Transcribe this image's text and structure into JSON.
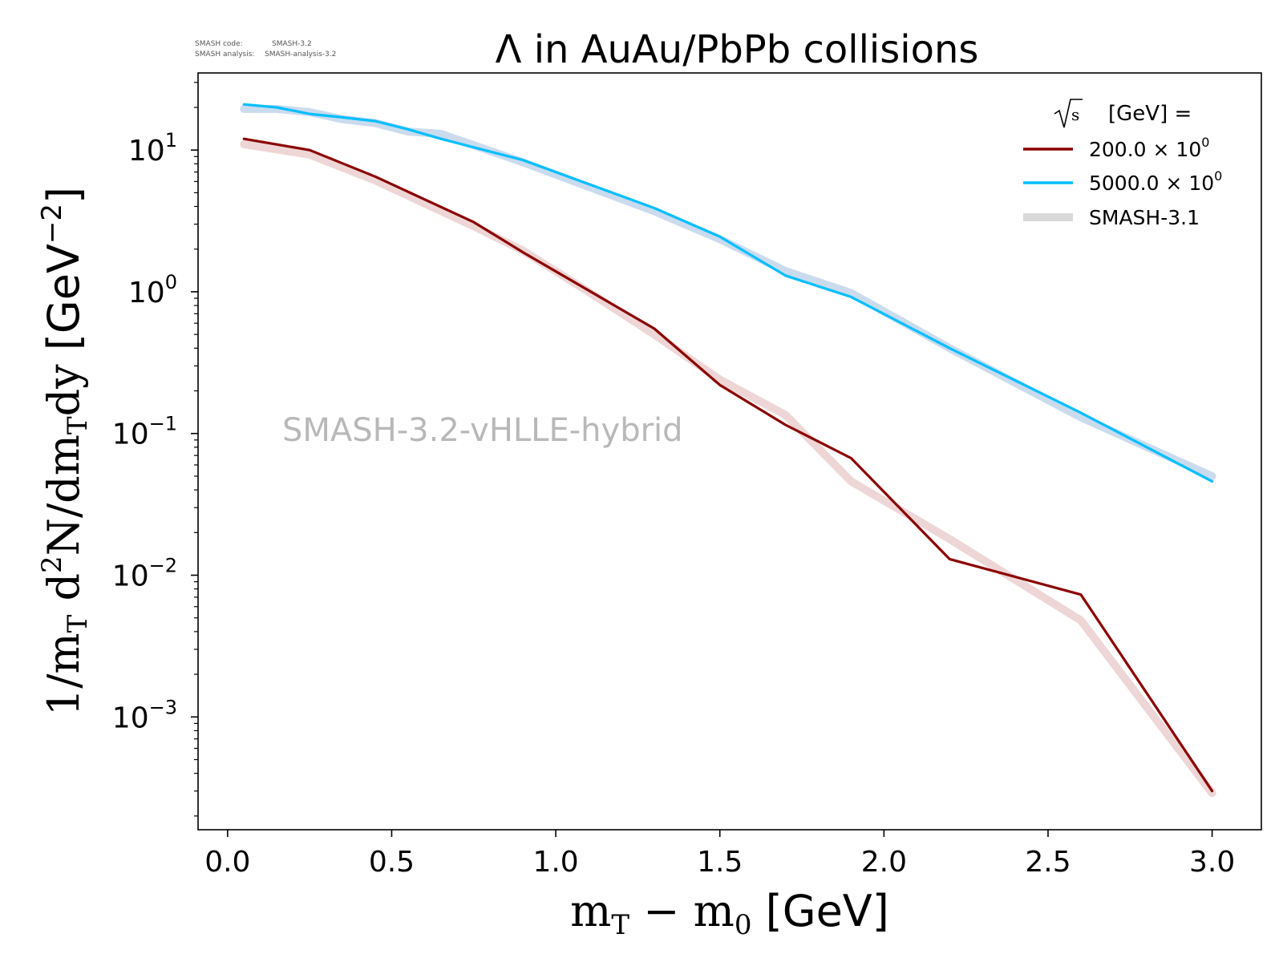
{
  "header": {
    "code_label": "SMASH code:",
    "code_value": "SMASH-3.2",
    "analysis_label": "SMASH analysis:",
    "analysis_value": "SMASH-analysis-3.2"
  },
  "chart_data": {
    "type": "line",
    "title": "Λ in AuAu/PbPb collisions",
    "watermark": "SMASH-3.2-vHLLE-hybrid",
    "xlabel_math": "m",
    "xlabel_sub_T": "T",
    "xlabel_minus": " − m",
    "xlabel_sub_0": "0",
    "xlabel_unit": " [GeV]",
    "ylabel_prefix": "1/m",
    "ylabel_sub1": "T",
    "ylabel_d": " d",
    "ylabel_sup": "2",
    "ylabel_mid": "N/dm",
    "ylabel_sub2": "T",
    "ylabel_dy": "dy",
    "ylabel_unit": " [GeV",
    "ylabel_unit_sup": "−2",
    "ylabel_unit_close": "]",
    "y_scale": "log",
    "xlim": [
      -0.09,
      3.15
    ],
    "ylim": [
      0.00016,
      35
    ],
    "x_ticks": [
      0.0,
      0.5,
      1.0,
      1.5,
      2.0,
      2.5,
      3.0
    ],
    "x_tick_labels": [
      "0.0",
      "0.5",
      "1.0",
      "1.5",
      "2.0",
      "2.5",
      "3.0"
    ],
    "y_ticks": [
      0.001,
      0.01,
      0.1,
      1,
      10
    ],
    "y_tick_base": [
      "10",
      "10",
      "10",
      "10",
      "10"
    ],
    "y_tick_exp": [
      "−3",
      "−2",
      "−1",
      "0",
      "1"
    ],
    "legend": {
      "title_unit": "[GeV] =",
      "placement": "top-right",
      "entries": [
        {
          "label": "200.0 × 10",
          "exp": "0",
          "color": "#8b0000"
        },
        {
          "label": "5000.0 × 10",
          "exp": "0",
          "color": "#00bfff"
        },
        {
          "label": "SMASH-3.1",
          "color": "#d9d9d9"
        }
      ]
    },
    "series": [
      {
        "name": "200.0 × 10⁰",
        "color": "#8b0000",
        "x": [
          0.05,
          0.25,
          0.45,
          0.75,
          0.9,
          1.3,
          1.5,
          1.7,
          1.9,
          2.2,
          2.6,
          3.0
        ],
        "y": [
          12,
          10,
          6.5,
          3.1,
          1.9,
          0.55,
          0.22,
          0.115,
          0.067,
          0.013,
          0.0073,
          0.0003
        ]
      },
      {
        "name": "5000.0 × 10⁰",
        "color": "#00bfff",
        "x": [
          0.05,
          0.15,
          0.25,
          0.35,
          0.45,
          0.55,
          0.65,
          0.9,
          1.3,
          1.5,
          1.7,
          1.9,
          2.2,
          2.6,
          3.0
        ],
        "y": [
          21,
          20,
          18,
          17,
          16,
          14,
          12,
          8.5,
          3.9,
          2.45,
          1.3,
          0.92,
          0.4,
          0.14,
          0.046
        ]
      },
      {
        "name": "SMASH-3.1",
        "role": "reference",
        "color": "#e8c8c8",
        "x": [
          0.05,
          0.25,
          0.45,
          0.75,
          0.9,
          1.1,
          1.3,
          1.5,
          1.7,
          1.9,
          2.2,
          2.6,
          3.0
        ],
        "y": [
          11,
          9.3,
          6.1,
          2.9,
          1.95,
          1.0,
          0.5,
          0.24,
          0.135,
          0.046,
          0.018,
          0.0048,
          0.00029
        ]
      },
      {
        "name": "SMASH-3.1",
        "role": "reference",
        "color": "#b9cfe8",
        "x": [
          0.05,
          0.15,
          0.25,
          0.35,
          0.45,
          0.55,
          0.65,
          0.9,
          1.3,
          1.5,
          1.7,
          1.9,
          2.2,
          2.6,
          3.0
        ],
        "y": [
          19.5,
          19.5,
          18.5,
          16.5,
          15.5,
          13.5,
          13,
          8.2,
          3.7,
          2.35,
          1.4,
          0.98,
          0.4,
          0.13,
          0.05
        ]
      }
    ]
  }
}
